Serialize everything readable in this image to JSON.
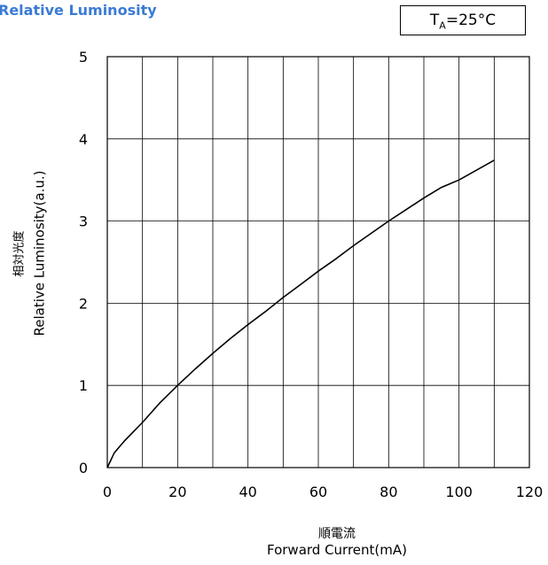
{
  "chart_data": {
    "type": "line",
    "title": "Relative Luminosity",
    "condition": {
      "main": "T",
      "sub": "A",
      "rest": "=25°C"
    },
    "xlabel_ja": "順電流",
    "xlabel": "Forward Current(mA)",
    "ylabel_ja": "相対光度",
    "ylabel": "Relative Luminosity(a.u.)",
    "xlim": [
      0,
      120
    ],
    "ylim": [
      0,
      5
    ],
    "x_ticks": [
      "0",
      "20",
      "40",
      "60",
      "80",
      "100",
      "120"
    ],
    "y_ticks": [
      "0",
      "1",
      "2",
      "3",
      "4",
      "5"
    ],
    "x_grid_step": 10,
    "y_grid_step": 1,
    "grid": true,
    "series": [
      {
        "color": "#000000",
        "x": [
          0,
          2,
          5,
          10,
          15,
          20,
          25,
          30,
          35,
          40,
          45,
          50,
          55,
          60,
          65,
          70,
          75,
          80,
          85,
          90,
          95,
          100,
          105,
          110
        ],
        "y": [
          0,
          0.18,
          0.33,
          0.55,
          0.79,
          1.0,
          1.2,
          1.39,
          1.57,
          1.74,
          1.9,
          2.07,
          2.23,
          2.39,
          2.54,
          2.7,
          2.85,
          3.0,
          3.14,
          3.28,
          3.41,
          3.5,
          3.62,
          3.74
        ]
      }
    ]
  }
}
